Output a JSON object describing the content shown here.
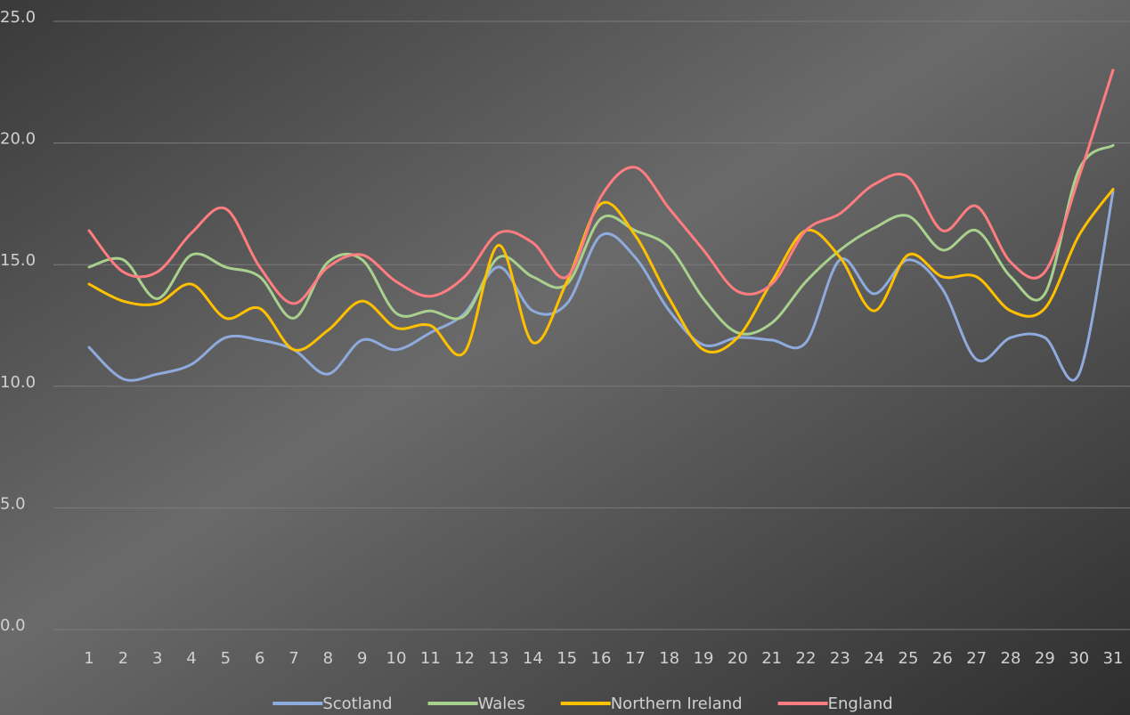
{
  "chart_data": {
    "type": "line",
    "categories": [
      "1",
      "2",
      "3",
      "4",
      "5",
      "6",
      "7",
      "8",
      "9",
      "10",
      "11",
      "12",
      "13",
      "14",
      "15",
      "16",
      "17",
      "18",
      "19",
      "20",
      "21",
      "22",
      "23",
      "24",
      "25",
      "26",
      "27",
      "28",
      "29",
      "30",
      "31"
    ],
    "series": [
      {
        "name": "Scotland",
        "color": "#8faadc",
        "values": [
          11.6,
          10.3,
          10.5,
          10.9,
          12.0,
          11.9,
          11.5,
          10.5,
          11.9,
          11.5,
          12.2,
          13.0,
          14.9,
          13.1,
          13.4,
          16.2,
          15.3,
          13.1,
          11.7,
          12.0,
          11.9,
          11.8,
          15.2,
          13.8,
          15.2,
          14.0,
          11.1,
          12.0,
          12.0,
          10.5,
          18.0
        ]
      },
      {
        "name": "Wales",
        "color": "#a9d18e",
        "values": [
          14.9,
          15.2,
          13.6,
          15.4,
          14.9,
          14.5,
          12.8,
          15.1,
          15.2,
          13.0,
          13.1,
          12.9,
          15.3,
          14.5,
          14.2,
          16.9,
          16.4,
          15.7,
          13.6,
          12.2,
          12.6,
          14.3,
          15.6,
          16.5,
          17.0,
          15.6,
          16.4,
          14.5,
          13.8,
          18.9,
          19.9
        ]
      },
      {
        "name": "Northern Ireland",
        "color": "#ffc000",
        "values": [
          14.2,
          13.5,
          13.4,
          14.2,
          12.8,
          13.2,
          11.5,
          12.3,
          13.5,
          12.4,
          12.5,
          11.4,
          15.8,
          11.8,
          14.3,
          17.5,
          16.2,
          13.6,
          11.5,
          12.0,
          14.3,
          16.4,
          15.3,
          13.1,
          15.4,
          14.5,
          14.5,
          13.1,
          13.2,
          16.2,
          18.1
        ]
      },
      {
        "name": "England",
        "color": "#ff7c80",
        "values": [
          16.4,
          14.7,
          14.7,
          16.3,
          17.3,
          14.9,
          13.4,
          14.9,
          15.4,
          14.3,
          13.7,
          14.5,
          16.3,
          15.9,
          14.5,
          17.8,
          19.0,
          17.3,
          15.6,
          13.9,
          14.2,
          16.4,
          17.1,
          18.3,
          18.6,
          16.4,
          17.4,
          15.1,
          14.7,
          18.6,
          23.0
        ]
      }
    ],
    "ylim": [
      0,
      25
    ],
    "yticks": [
      {
        "value": 0,
        "label": "0.0"
      },
      {
        "value": 5,
        "label": "5.0"
      },
      {
        "value": 10,
        "label": "10.0"
      },
      {
        "value": 15,
        "label": "15.0"
      },
      {
        "value": 20,
        "label": "20.0"
      },
      {
        "value": 25,
        "label": "25.0"
      }
    ],
    "grid": true,
    "legend": "bottom"
  }
}
